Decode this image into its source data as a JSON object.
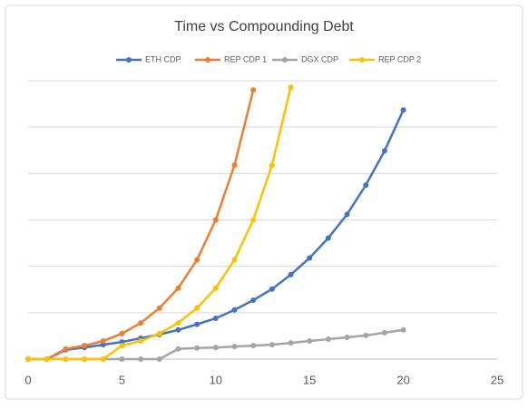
{
  "chart_data": {
    "type": "line",
    "title": "Time vs Compounding Debt",
    "x": [
      0,
      1,
      2,
      3,
      4,
      5,
      6,
      7,
      8,
      9,
      10,
      11,
      12,
      13,
      14,
      15,
      16,
      17,
      18,
      19,
      20
    ],
    "series": [
      {
        "name": "ETH CDP",
        "color": "#4472c4",
        "values": [
          0,
          0,
          0.2,
          0.25,
          0.31,
          0.37,
          0.45,
          0.53,
          0.63,
          0.75,
          0.88,
          1.06,
          1.27,
          1.51,
          1.82,
          2.18,
          2.61,
          3.12,
          3.75,
          4.49,
          5.37
        ]
      },
      {
        "name": "REP CDP 1",
        "color": "#ed7d31",
        "values": [
          0,
          0,
          0.22,
          0.29,
          0.39,
          0.55,
          0.78,
          1.1,
          1.53,
          2.14,
          3.0,
          4.18,
          5.8,
          null,
          null,
          null,
          null,
          null,
          null,
          null,
          null
        ]
      },
      {
        "name": "DGX CDP",
        "color": "#a5a5a5",
        "values": [
          0,
          0,
          0,
          0,
          0,
          0,
          0,
          0,
          0.22,
          0.24,
          0.25,
          0.27,
          0.29,
          0.31,
          0.35,
          0.39,
          0.43,
          0.47,
          0.51,
          0.57,
          0.63
        ]
      },
      {
        "name": "REP CDP 2",
        "color": "#ffc000",
        "values": [
          0,
          0,
          0,
          0,
          0,
          0.29,
          0.39,
          0.55,
          0.78,
          1.1,
          1.53,
          2.14,
          3.0,
          4.18,
          5.86,
          null,
          null,
          null,
          null,
          null,
          null
        ]
      }
    ],
    "xlim": [
      0,
      25
    ],
    "xticks": [
      0,
      5,
      10,
      15,
      20,
      25
    ],
    "ylim": [
      0,
      6
    ],
    "yticks": [
      0,
      1,
      2,
      3,
      4,
      5,
      6
    ],
    "grid": true,
    "legend": "top"
  }
}
